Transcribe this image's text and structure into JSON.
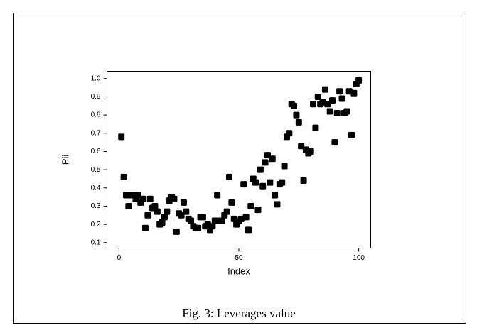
{
  "chart_data": {
    "type": "scatter",
    "caption": "Fig. 3: Leverages value",
    "xlabel": "Index",
    "ylabel": "Pii",
    "color": "#000000",
    "x": [
      1,
      2,
      3,
      4,
      5,
      6,
      7,
      8,
      9,
      10,
      11,
      12,
      13,
      14,
      15,
      16,
      17,
      18,
      19,
      20,
      21,
      22,
      23,
      24,
      25,
      26,
      27,
      28,
      29,
      30,
      31,
      32,
      33,
      34,
      35,
      36,
      37,
      38,
      39,
      40,
      41,
      42,
      43,
      44,
      45,
      46,
      47,
      48,
      49,
      50,
      51,
      52,
      53,
      54,
      55,
      56,
      57,
      58,
      59,
      60,
      61,
      62,
      63,
      64,
      65,
      66,
      67,
      68,
      69,
      70,
      71,
      72,
      73,
      74,
      75,
      76,
      77,
      78,
      79,
      80,
      81,
      82,
      83,
      84,
      85,
      86,
      87,
      88,
      89,
      90,
      91,
      92,
      93,
      94,
      95,
      96,
      97,
      98,
      99,
      100
    ],
    "values": [
      0.68,
      0.46,
      0.36,
      0.3,
      0.36,
      0.36,
      0.34,
      0.36,
      0.32,
      0.34,
      0.18,
      0.25,
      0.34,
      0.29,
      0.3,
      0.27,
      0.2,
      0.21,
      0.24,
      0.27,
      0.33,
      0.35,
      0.34,
      0.16,
      0.26,
      0.25,
      0.32,
      0.27,
      0.23,
      0.22,
      0.19,
      0.18,
      0.18,
      0.24,
      0.24,
      0.19,
      0.2,
      0.17,
      0.19,
      0.22,
      0.36,
      0.22,
      0.22,
      0.25,
      0.27,
      0.46,
      0.32,
      0.23,
      0.2,
      0.22,
      0.23,
      0.42,
      0.24,
      0.17,
      0.3,
      0.45,
      0.43,
      0.28,
      0.5,
      0.41,
      0.54,
      0.58,
      0.43,
      0.56,
      0.36,
      0.31,
      0.42,
      0.43,
      0.52,
      0.68,
      0.7,
      0.86,
      0.85,
      0.8,
      0.76,
      0.63,
      0.44,
      0.61,
      0.59,
      0.6,
      0.86,
      0.73,
      0.9,
      0.86,
      0.87,
      0.94,
      0.86,
      0.82,
      0.88,
      0.65,
      0.81,
      0.93,
      0.89,
      0.81,
      0.82,
      0.93,
      0.69,
      0.92,
      0.97,
      0.99
    ],
    "xlim": [
      -5,
      105
    ],
    "ylim": [
      0.07,
      1.04
    ],
    "xticks": [
      0,
      50,
      100
    ],
    "yticks": [
      0.1,
      0.2,
      0.3,
      0.4,
      0.5,
      0.6,
      0.7,
      0.8,
      0.9,
      {
        "value": 1,
        "label": "1.0"
      }
    ]
  }
}
